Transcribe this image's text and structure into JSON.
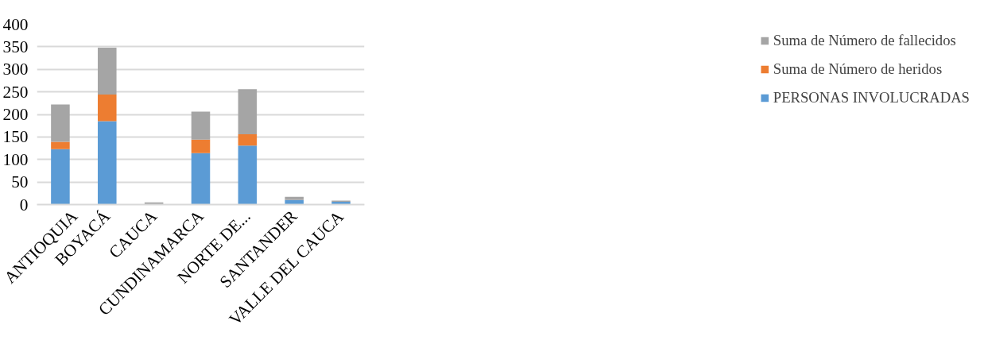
{
  "chart_data": {
    "type": "bar",
    "stacked": true,
    "categories": [
      "ANTIOQUIA",
      "BOYACÁ",
      "CAUCA",
      "CUNDINAMARCA",
      "NORTE DE...",
      "SANTANDER",
      "VALLE DEL CAUCA"
    ],
    "series": [
      {
        "name": "PERSONAS INVOLUCRADAS",
        "color": "#5b9bd5",
        "values": [
          123,
          185,
          0,
          114,
          131,
          10,
          6
        ]
      },
      {
        "name": "Suma de Número de heridos",
        "color": "#ed7d31",
        "values": [
          16,
          59,
          0,
          30,
          25,
          0,
          0
        ]
      },
      {
        "name": "Suma de Número de fallecidos",
        "color": "#a5a5a5",
        "values": [
          83,
          104,
          5,
          62,
          100,
          7,
          3
        ]
      }
    ],
    "ylim": [
      0,
      400
    ],
    "yticks": [
      0,
      50,
      100,
      150,
      200,
      250,
      300,
      350,
      400
    ],
    "grid": "y",
    "legend": "right"
  }
}
